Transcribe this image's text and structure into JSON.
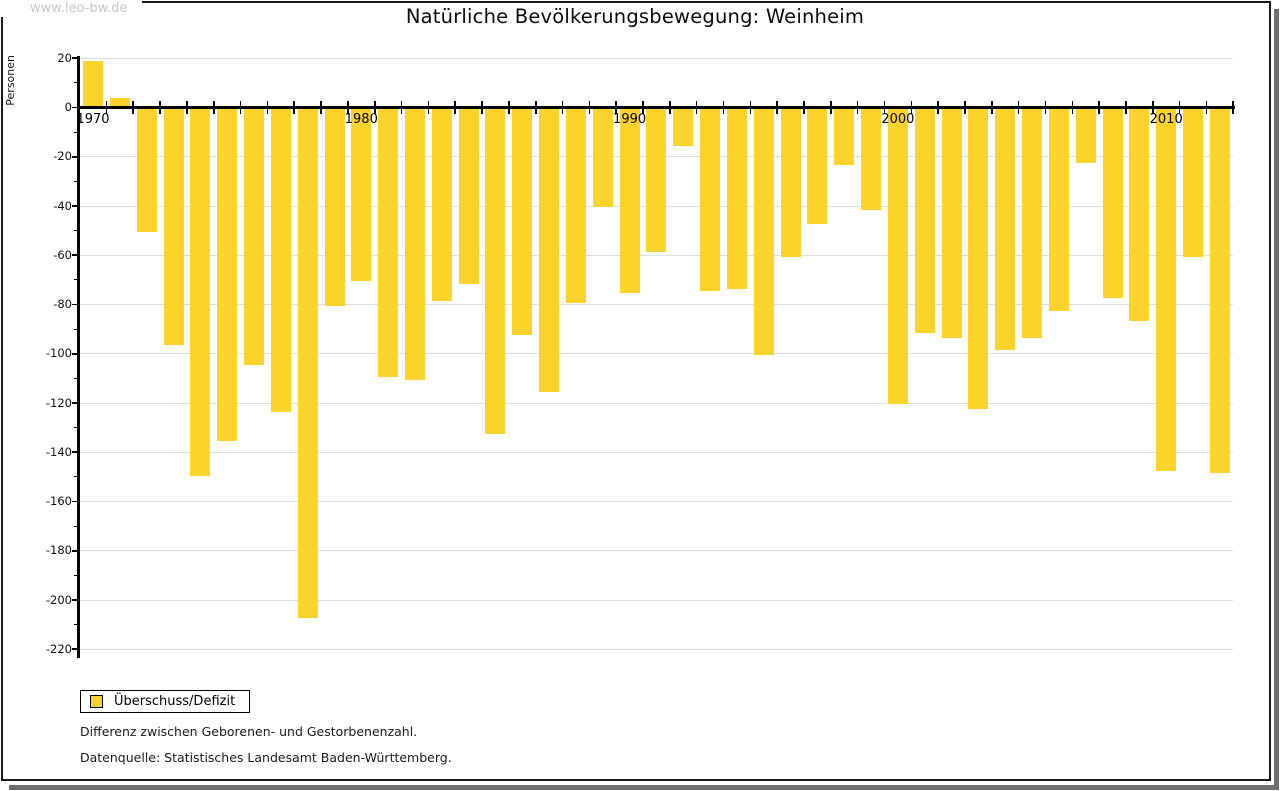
{
  "watermark": "www.leo-bw.de",
  "header": {
    "title": "Natürliche Bevölkerungsbewegung: Weinheim"
  },
  "legend": {
    "label": "Überschuss/Defizit"
  },
  "footnotes": {
    "line1": "Differenz zwischen Geborenen- und Gestorbenenzahl.",
    "line2": "Datenquelle: Statistisches Landesamt Baden-Württemberg."
  },
  "colors": {
    "bar": "#fbd32b",
    "grid": "#dedede",
    "axis": "#000000",
    "watermark_text": "#c6c6c6",
    "frame_shadow": "#6e6e6e"
  },
  "chart_data": {
    "type": "bar",
    "title": "Natürliche Bevölkerungsbewegung: Weinheim",
    "xlabel": "",
    "ylabel": "Personen",
    "series_name": "Überschuss/Defizit",
    "x": [
      1970,
      1971,
      1972,
      1973,
      1974,
      1975,
      1976,
      1977,
      1978,
      1979,
      1980,
      1981,
      1982,
      1983,
      1984,
      1985,
      1986,
      1987,
      1988,
      1989,
      1990,
      1991,
      1992,
      1993,
      1994,
      1995,
      1996,
      1997,
      1998,
      1999,
      2000,
      2001,
      2002,
      2003,
      2004,
      2005,
      2006,
      2007,
      2008,
      2009,
      2010,
      2011,
      2012
    ],
    "values": [
      19,
      4,
      -50,
      -96,
      -149,
      -135,
      -104,
      -123,
      -207,
      -80,
      -70,
      -109,
      -110,
      -78,
      -71,
      -132,
      -92,
      -115,
      -79,
      -40,
      -75,
      -58,
      -15,
      -74,
      -73,
      -100,
      -60,
      -47,
      -23,
      -41,
      -120,
      -91,
      -93,
      -122,
      -98,
      -93,
      -82,
      -22,
      -77,
      -86,
      -147,
      -60,
      -148
    ],
    "ylim": [
      -220,
      20
    ],
    "ytick_step": 20,
    "x_tick_labels": [
      "1970",
      "1980",
      "1990",
      "2000",
      "2010"
    ],
    "grid": "horizontal",
    "legend_position": "bottom-left"
  }
}
